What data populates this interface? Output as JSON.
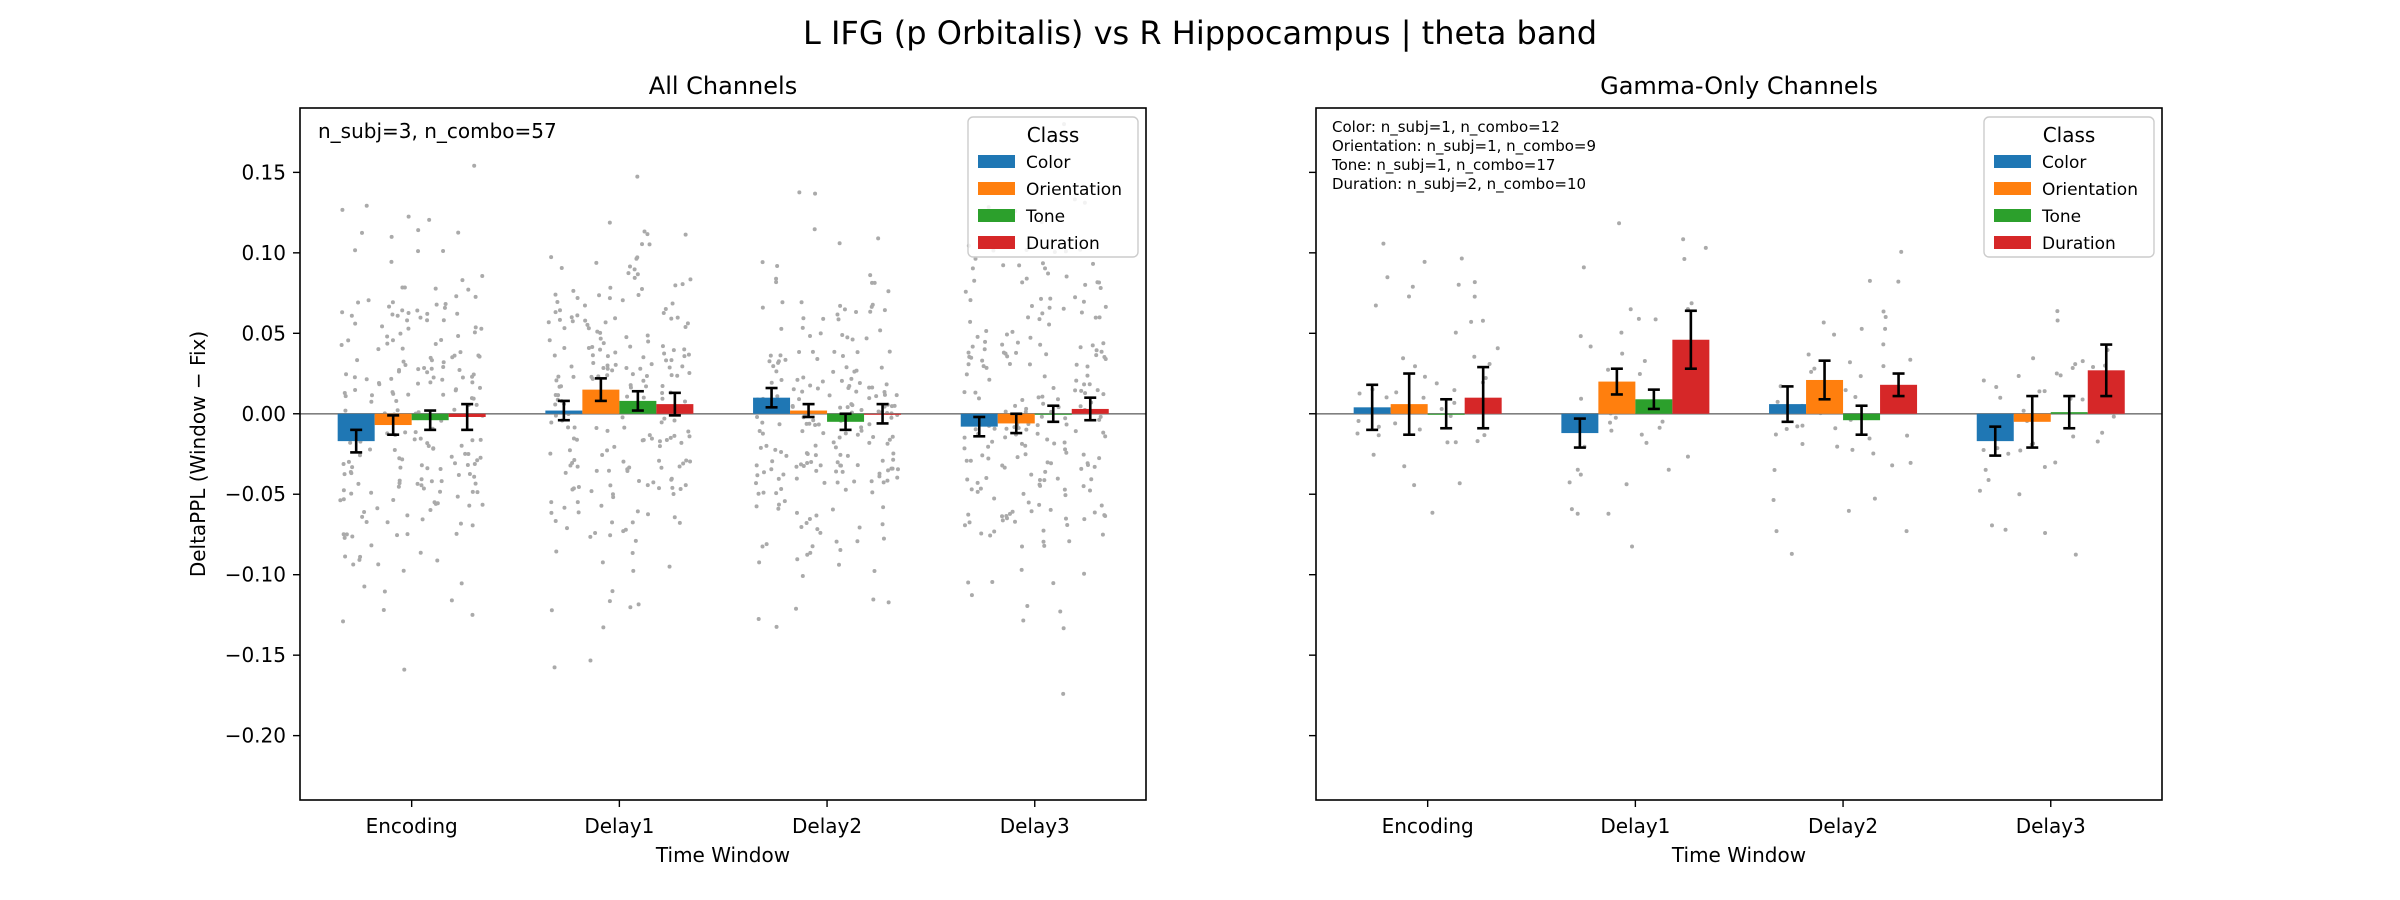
{
  "figure": {
    "title": "L IFG (p Orbitalis) vs R Hippocampus  |  theta band"
  },
  "legend": {
    "title": "Class",
    "placement": "upper right"
  },
  "colors": {
    "Color": "#1f77b4",
    "Orientation": "#ff7f0e",
    "Tone": "#2ca02c",
    "Duration": "#d62728",
    "jitter_points": "#aaaaaa",
    "zero_line": "#808080"
  },
  "chart_data": [
    {
      "type": "bar",
      "title": "All Channels",
      "xlabel": "Time Window",
      "ylabel": "DeltaPPL (Window − Fix)",
      "ylim": [
        -0.24,
        0.19
      ],
      "yticks": [
        -0.2,
        -0.15,
        -0.1,
        -0.05,
        0.0,
        0.05,
        0.1,
        0.15
      ],
      "ytick_labels": [
        "−0.20",
        "−0.15",
        "−0.10",
        "−0.05",
        "0.00",
        "0.05",
        "0.10",
        "0.15"
      ],
      "grid": false,
      "legend_placement": "top-right",
      "annotation": [
        "n_subj=3, n_combo=57"
      ],
      "categories": [
        "Encoding",
        "Delay1",
        "Delay2",
        "Delay3"
      ],
      "series": [
        {
          "name": "Color",
          "values": [
            -0.017,
            0.002,
            0.01,
            -0.008
          ],
          "err": [
            0.007,
            0.006,
            0.006,
            0.006
          ]
        },
        {
          "name": "Orientation",
          "values": [
            -0.007,
            0.015,
            0.002,
            -0.006
          ],
          "err": [
            0.006,
            0.007,
            0.004,
            0.006
          ]
        },
        {
          "name": "Tone",
          "values": [
            -0.004,
            0.008,
            -0.005,
            0.0
          ],
          "err": [
            0.006,
            0.006,
            0.005,
            0.005
          ]
        },
        {
          "name": "Duration",
          "values": [
            -0.002,
            0.006,
            0.0,
            0.003
          ],
          "err": [
            0.008,
            0.007,
            0.006,
            0.007
          ]
        }
      ]
    },
    {
      "type": "bar",
      "title": "Gamma-Only Channels",
      "xlabel": "Time Window",
      "ylabel": "",
      "ylim": [
        -0.24,
        0.19
      ],
      "yticks": [
        -0.2,
        -0.15,
        -0.1,
        -0.05,
        0.0,
        0.05,
        0.1,
        0.15
      ],
      "ytick_labels": [],
      "grid": false,
      "legend_placement": "top-right",
      "annotation": [
        "Color: n_subj=1, n_combo=12",
        "Orientation: n_subj=1, n_combo=9",
        "Tone: n_subj=1, n_combo=17",
        "Duration: n_subj=2, n_combo=10"
      ],
      "categories": [
        "Encoding",
        "Delay1",
        "Delay2",
        "Delay3"
      ],
      "series": [
        {
          "name": "Color",
          "values": [
            0.004,
            -0.012,
            0.006,
            -0.017
          ],
          "err": [
            0.014,
            0.009,
            0.011,
            0.009
          ]
        },
        {
          "name": "Orientation",
          "values": [
            0.006,
            0.02,
            0.021,
            -0.005
          ],
          "err": [
            0.019,
            0.008,
            0.012,
            0.016
          ]
        },
        {
          "name": "Tone",
          "values": [
            0.0,
            0.009,
            -0.004,
            0.001
          ],
          "err": [
            0.009,
            0.006,
            0.009,
            0.01
          ]
        },
        {
          "name": "Duration",
          "values": [
            0.01,
            0.046,
            0.018,
            0.027
          ],
          "err": [
            0.019,
            0.018,
            0.007,
            0.016
          ]
        }
      ]
    }
  ]
}
